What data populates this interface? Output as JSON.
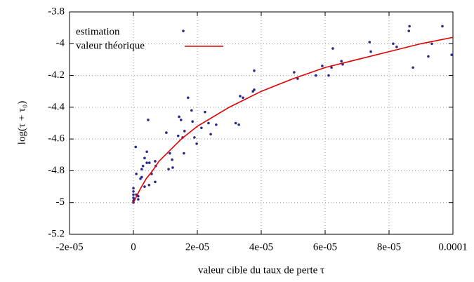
{
  "chart_data": {
    "type": "scatter",
    "xlabel": "valeur cible du taux de perte τ",
    "ylabel": "log(τ + τ₀)",
    "xlim": [
      -2e-05,
      0.0001
    ],
    "xticks": [
      {
        "value": -2e-05,
        "label": "-2e-05"
      },
      0,
      {
        "value": 2e-05,
        "label": "2e-05"
      },
      {
        "value": 4e-05,
        "label": "4e-05"
      },
      {
        "value": 6e-05,
        "label": "6e-05"
      },
      {
        "value": 8e-05,
        "label": "8e-05"
      },
      0.0001
    ],
    "ylim": [
      -5.2,
      -3.8
    ],
    "yticks": [
      -5.2,
      -5,
      -4.8,
      -4.6,
      -4.4,
      -4.2,
      -4,
      -3.8
    ],
    "grid": true,
    "legend": "upper left",
    "series": [
      {
        "name": "estimation",
        "type": "scatter",
        "color": "#2a2a8c",
        "x": [
          0,
          0,
          0,
          0,
          0,
          0,
          2e-07,
          9e-07,
          9e-07,
          1.5e-06,
          1.5e-06,
          2.2e-06,
          2.6e-06,
          2.6e-06,
          3e-06,
          3.5e-06,
          3.5e-06,
          4.2e-06,
          4.2e-06,
          5e-06,
          4.9e-06,
          5.7e-06,
          6.8e-06,
          7e-06,
          6.8e-06,
          7e-07,
          4.6e-06,
          1.03e-05,
          1.14e-05,
          1.21e-05,
          1.23e-05,
          1.1e-05,
          1.4e-05,
          1.43e-05,
          1.49e-05,
          1.54e-05,
          1.6e-05,
          1.58e-05,
          1.71e-05,
          1.82e-05,
          1.85e-05,
          1.91e-05,
          1.98e-05,
          1.56e-05,
          2.13e-05,
          2.24e-05,
          2.35e-05,
          2.42e-05,
          2.59e-05,
          3.2e-05,
          3.3e-05,
          3.34e-05,
          3.43e-05,
          3.74e-05,
          3.78e-05,
          3.78e-05,
          5.03e-05,
          5.14e-05,
          5.71e-05,
          5.91e-05,
          6.11e-05,
          6.2e-05,
          6.24e-05,
          6.51e-05,
          6.55e-05,
          7.39e-05,
          7.43e-05,
          8.13e-05,
          8.24e-05,
          8.62e-05,
          8.64e-05,
          8.75e-05,
          9.23e-05,
          9.34e-05,
          9.67e-05,
          9.96e-05
        ],
        "values": [
          -4.91,
          -4.93,
          -4.95,
          -4.97,
          -4.99,
          -5.0,
          -4.98,
          -4.95,
          -4.82,
          -4.96,
          -4.98,
          -4.85,
          -4.84,
          -4.79,
          -4.77,
          -4.72,
          -4.9,
          -4.75,
          -4.68,
          -4.75,
          -4.89,
          -4.82,
          -4.74,
          -4.77,
          -4.87,
          -4.65,
          -4.48,
          -4.56,
          -4.69,
          -4.73,
          -4.78,
          -4.79,
          -4.58,
          -4.46,
          -4.48,
          -4.59,
          -4.55,
          -4.69,
          -4.34,
          -4.42,
          -4.49,
          -4.59,
          -4.63,
          -3.92,
          -4.53,
          -4.43,
          -4.5,
          -4.57,
          -4.51,
          -4.5,
          -4.51,
          -4.33,
          -4.34,
          -4.3,
          -4.29,
          -4.17,
          -4.18,
          -4.22,
          -4.2,
          -4.14,
          -4.2,
          -4.15,
          -4.03,
          -4.11,
          -4.13,
          -3.99,
          -4.05,
          -4.0,
          -4.02,
          -3.92,
          -3.89,
          -4.15,
          -4.08,
          -4.0,
          -3.89,
          -4.07
        ]
      },
      {
        "name": "valeur théorique",
        "type": "line",
        "color": "#e00000",
        "x": [
          0,
          1e-06,
          2e-06,
          4e-06,
          6e-06,
          8e-06,
          1e-05,
          1.5e-05,
          2e-05,
          3e-05,
          4e-05,
          5e-05,
          6e-05,
          7e-05,
          8e-05,
          9e-05,
          0.0001
        ],
        "values": [
          -5,
          -4.96,
          -4.92,
          -4.85,
          -4.8,
          -4.74,
          -4.7,
          -4.6,
          -4.52,
          -4.4,
          -4.3,
          -4.22,
          -4.15,
          -4.1,
          -4.05,
          -4.0,
          -3.96
        ]
      }
    ]
  }
}
